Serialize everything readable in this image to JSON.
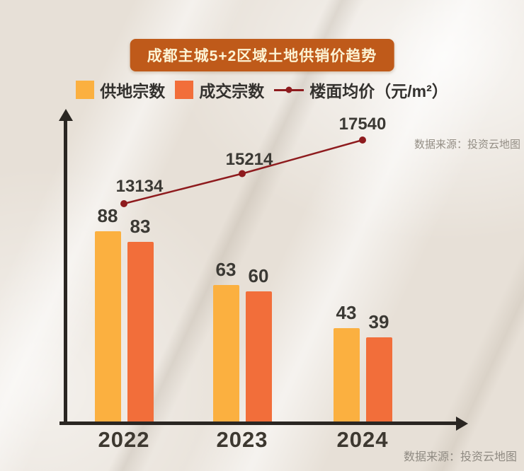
{
  "title": "成都主城5+2区域土地供销价趋势",
  "legend": [
    {
      "label": "供地宗数",
      "color": "#FBB040",
      "type": "square"
    },
    {
      "label": "成交宗数",
      "color": "#F26E3A",
      "type": "square"
    },
    {
      "label": "楼面均价（元/m²）",
      "color": "#8E1B1E",
      "type": "line-dot"
    }
  ],
  "watermark": "数据来源：投资云地图",
  "source": "数据来源：投资云地图",
  "chart_data": {
    "type": "bar",
    "subtype": "grouped bars with overlaid line series",
    "title": "成都主城5+2区域土地供销价趋势",
    "categories": [
      "2022",
      "2023",
      "2024"
    ],
    "series": [
      {
        "name": "供地宗数",
        "type": "bar",
        "color": "#FBB040",
        "values": [
          88,
          63,
          43
        ]
      },
      {
        "name": "成交宗数",
        "type": "bar",
        "color": "#F26E3A",
        "values": [
          83,
          60,
          39
        ]
      },
      {
        "name": "楼面均价（元/m²）",
        "type": "line",
        "color": "#8E1B1E",
        "values": [
          13134,
          15214,
          17540
        ]
      }
    ],
    "xlabel": "",
    "ylabel": "",
    "ylim_bars": [
      0,
      95
    ],
    "grid": false,
    "legend_position": "top",
    "axis_style": "arrow-tipped black axes, no tick marks"
  }
}
